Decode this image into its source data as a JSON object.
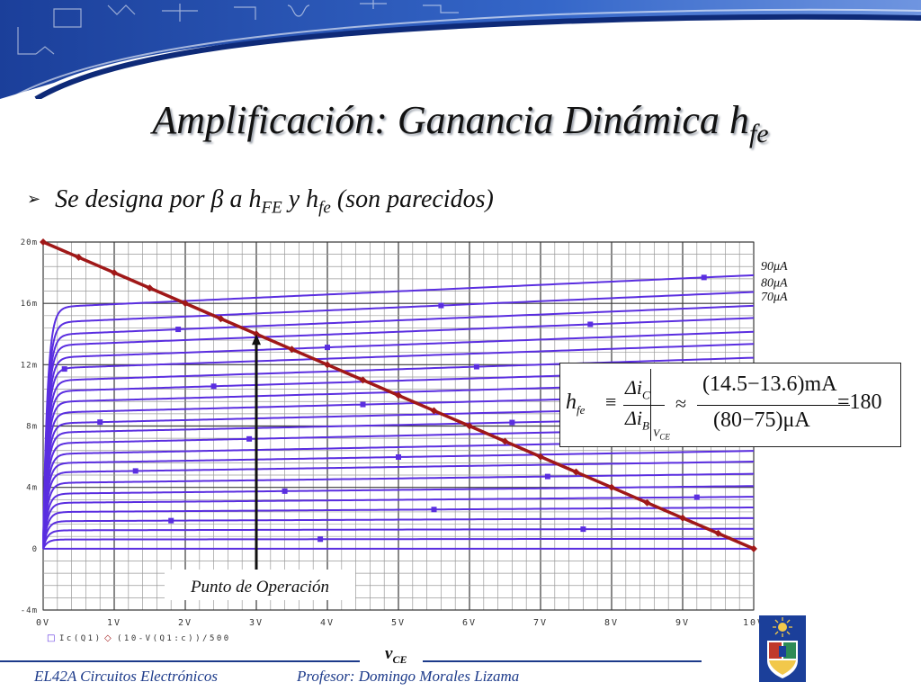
{
  "slide": {
    "title_main": "Amplificación: Ganancia Dinámica h",
    "title_sub": "fe",
    "bullet_a": "Se designa por ",
    "bullet_beta": "β",
    "bullet_b": " a h",
    "bullet_sub1": "FE",
    "bullet_c": " y h",
    "bullet_sub2": "fe",
    "bullet_d": " (son parecidos)",
    "footer_left": "EL42A Circuitos Electrónicos",
    "footer_right": "Profesor: Domingo Morales Lizama",
    "xlabel_main": "v",
    "xlabel_sub": "CE",
    "annotation": "Punto de Operación"
  },
  "formula": {
    "lhs": "h",
    "lhs_sub": "fe",
    "equiv": "≡",
    "num_delta": "Δi",
    "num_sub": "C",
    "den_delta": "Δi",
    "den_sub": "B",
    "eval_sub": "V",
    "eval_sub2": "CE",
    "approx": "≈",
    "num_value": "(14.5−13.6)mA",
    "den_value": "(80−75)μA",
    "result": "=180"
  },
  "colors": {
    "curve": "#5a2ee0",
    "load_line": "#a01818",
    "grid": "#6a6a6a",
    "footer": "#1c3a8a",
    "banner": "#1b3f9a"
  },
  "chart_data": {
    "type": "line",
    "xlabel": "",
    "ylabel": "",
    "xlim": [
      0,
      10
    ],
    "ylim": [
      -0.004,
      0.02
    ],
    "x_ticks": [
      "0V",
      "1V",
      "2V",
      "3V",
      "4V",
      "5V",
      "6V",
      "7V",
      "8V",
      "9V",
      "10V"
    ],
    "y_ticks": [
      "20m",
      "16m",
      "12m",
      "8m",
      "4m",
      "0",
      "-4m"
    ],
    "y_tick_values": [
      0.02,
      0.016,
      0.012,
      0.008,
      0.004,
      0,
      -0.004
    ],
    "grid": true,
    "legend_entries": [
      {
        "marker": "□",
        "label": "Ic(Q1)"
      },
      {
        "marker": "◇",
        "label": "(10-V(Q1:c))/500"
      }
    ],
    "curve_labels": [
      "90μA",
      "80μA",
      "70μA"
    ],
    "family": {
      "count": 24,
      "ic_at_0_3V_mA": [
        0.0,
        0.6,
        1.2,
        1.8,
        2.4,
        3.0,
        3.6,
        4.3,
        5.0,
        5.6,
        6.2,
        6.9,
        7.6,
        8.2,
        8.9,
        9.6,
        10.3,
        11.0,
        11.8,
        12.5,
        13.3,
        14.0,
        14.8,
        15.8
      ],
      "slope_mA_per_V": [
        0.0,
        0.005,
        0.01,
        0.02,
        0.03,
        0.04,
        0.05,
        0.06,
        0.07,
        0.08,
        0.09,
        0.1,
        0.1,
        0.11,
        0.12,
        0.13,
        0.14,
        0.15,
        0.16,
        0.17,
        0.18,
        0.19,
        0.2,
        0.21
      ]
    },
    "load_line": {
      "x": [
        0,
        10
      ],
      "y": [
        0.02,
        0
      ]
    },
    "operating_point": {
      "x": 3,
      "y": 0.014
    }
  }
}
